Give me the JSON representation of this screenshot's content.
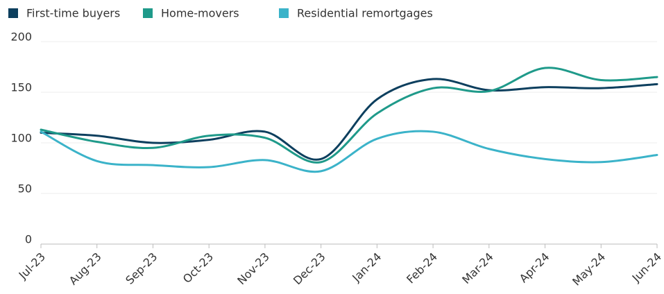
{
  "chart_data": {
    "type": "line",
    "categories": [
      "Jul-23",
      "Aug-23",
      "Sep-23",
      "Oct-23",
      "Nov-23",
      "Dec-23",
      "Jan-24",
      "Feb-24",
      "Mar-24",
      "Apr-24",
      "May-24",
      "Jun-24"
    ],
    "series": [
      {
        "name": "First-time buyers",
        "color": "#0d3f5e",
        "values": [
          110,
          107,
          100,
          103,
          111,
          84,
          143,
          163,
          152,
          155,
          154,
          158
        ]
      },
      {
        "name": "Home-movers",
        "color": "#1f9a8a",
        "values": [
          113,
          101,
          95,
          107,
          105,
          81,
          129,
          154,
          151,
          174,
          162,
          165
        ]
      },
      {
        "name": "Residential remortgages",
        "color": "#3bb3c9",
        "values": [
          111,
          82,
          78,
          76,
          83,
          72,
          104,
          111,
          94,
          84,
          81,
          88
        ]
      }
    ],
    "ylim": [
      0,
      200
    ],
    "yticks": [
      0,
      50,
      100,
      150,
      200
    ],
    "grid": true,
    "legend": "top"
  }
}
